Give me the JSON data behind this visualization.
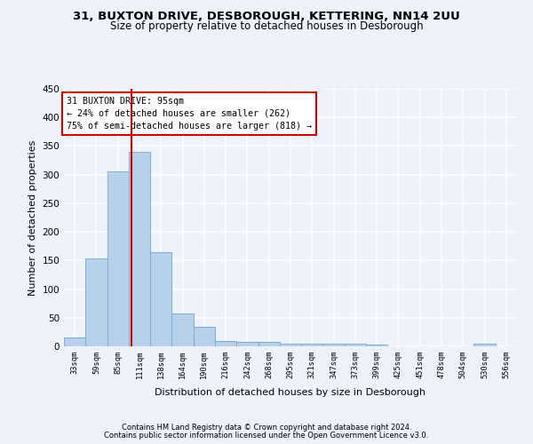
{
  "title1": "31, BUXTON DRIVE, DESBOROUGH, KETTERING, NN14 2UU",
  "title2": "Size of property relative to detached houses in Desborough",
  "xlabel": "Distribution of detached houses by size in Desborough",
  "ylabel": "Number of detached properties",
  "bin_labels": [
    "33sqm",
    "59sqm",
    "85sqm",
    "111sqm",
    "138sqm",
    "164sqm",
    "190sqm",
    "216sqm",
    "242sqm",
    "268sqm",
    "295sqm",
    "321sqm",
    "347sqm",
    "373sqm",
    "399sqm",
    "425sqm",
    "451sqm",
    "478sqm",
    "504sqm",
    "530sqm",
    "556sqm"
  ],
  "bar_heights": [
    15,
    153,
    305,
    340,
    165,
    57,
    34,
    10,
    8,
    7,
    5,
    4,
    4,
    4,
    3,
    0,
    0,
    0,
    0,
    5,
    0
  ],
  "bar_color": "#b8d0ea",
  "bar_edge_color": "#7aafd4",
  "red_line_x": 2.62,
  "annotation_line1": "31 BUXTON DRIVE: 95sqm",
  "annotation_line2": "← 24% of detached houses are smaller (262)",
  "annotation_line3": "75% of semi-detached houses are larger (818) →",
  "annotation_box_color": "#ffffff",
  "annotation_edge_color": "#cc0000",
  "ylim": [
    0,
    450
  ],
  "yticks": [
    0,
    50,
    100,
    150,
    200,
    250,
    300,
    350,
    400,
    450
  ],
  "footer1": "Contains HM Land Registry data © Crown copyright and database right 2024.",
  "footer2": "Contains public sector information licensed under the Open Government Licence v3.0.",
  "bg_color": "#edf2fb",
  "grid_color": "#ffffff"
}
